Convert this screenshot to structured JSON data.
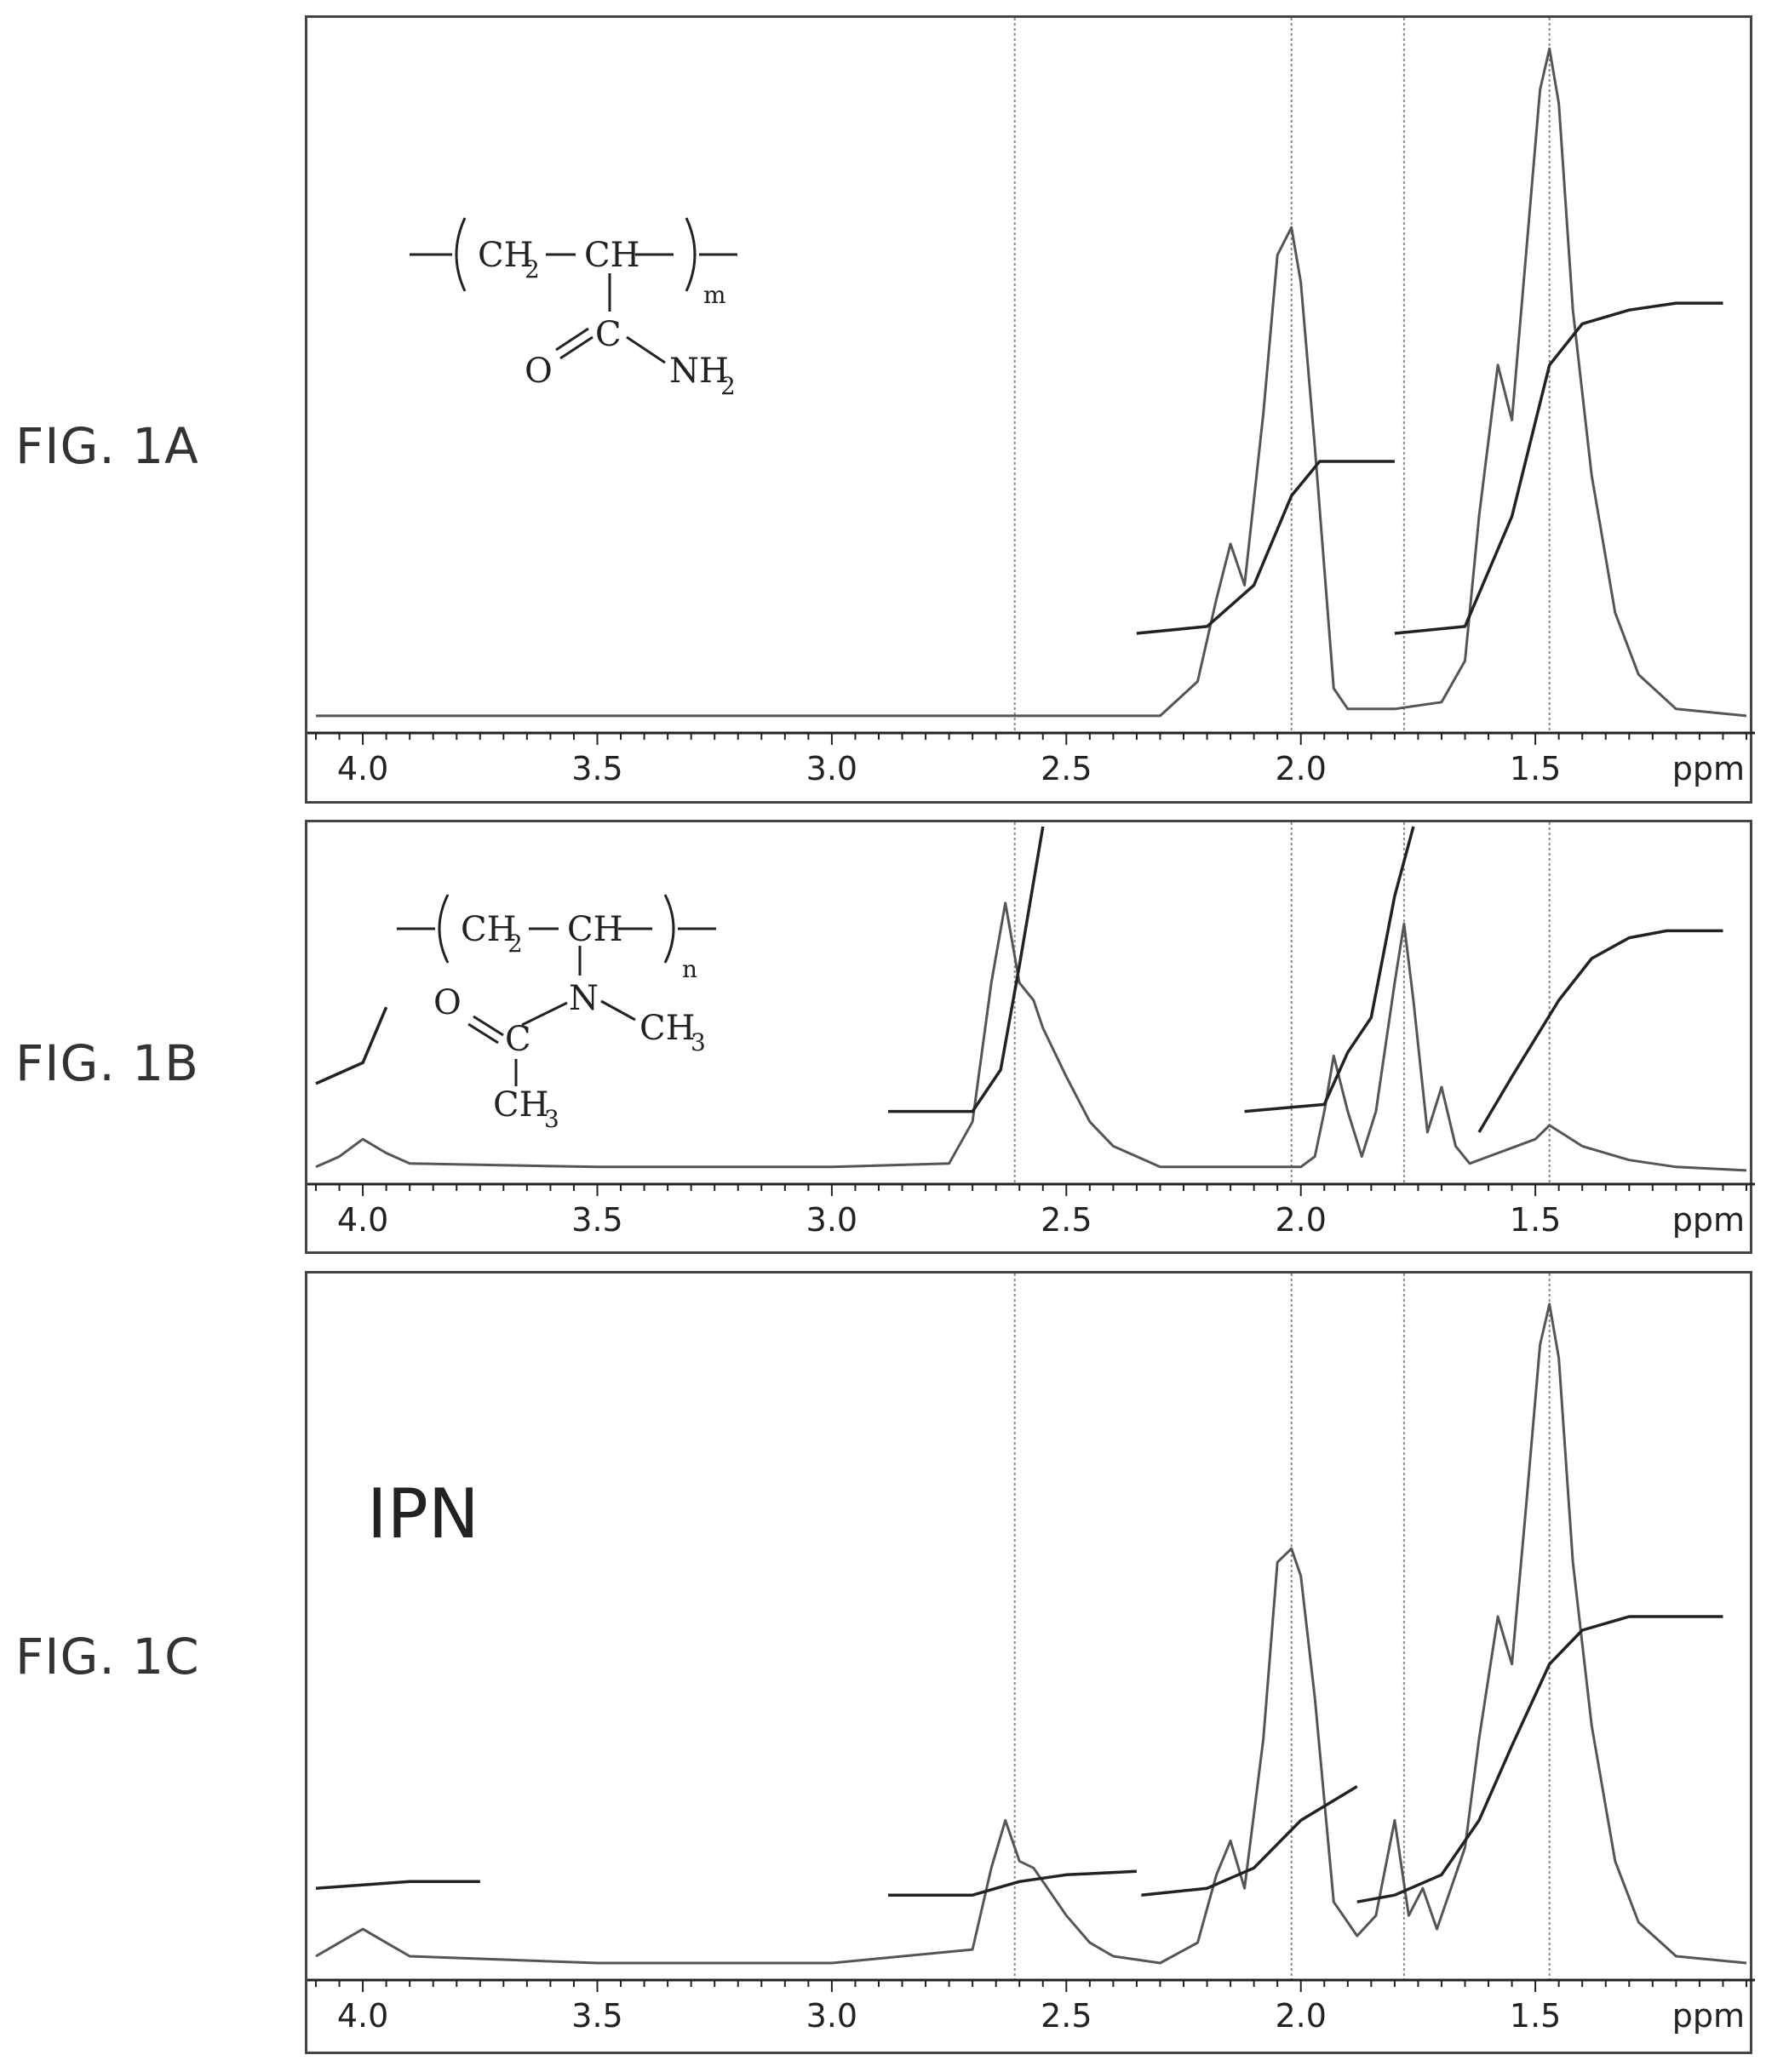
{
  "figures": {
    "a": {
      "label": "FIG. 1A"
    },
    "b": {
      "label": "FIG. 1B"
    },
    "c": {
      "label": "FIG. 1C",
      "panel_text": "IPN"
    }
  },
  "x_axis": {
    "unit": "ppm",
    "ticks": [
      "4.0",
      "3.5",
      "3.0",
      "2.5",
      "2.0",
      "1.5"
    ],
    "tick_values": [
      4.0,
      3.5,
      3.0,
      2.5,
      2.0,
      1.5
    ],
    "xlim": [
      4.1,
      1.05
    ],
    "reversed": true
  },
  "reference_lines_ppm": [
    2.61,
    2.02,
    1.78,
    1.47
  ],
  "structures": {
    "a": {
      "unit1": "CH",
      "unit1_sub": "2",
      "unit2": "CH",
      "repeat": "m",
      "carbonyl_c": "C",
      "oxygen": "O",
      "amide": "NH",
      "amide_sub": "2"
    },
    "b": {
      "unit1": "CH",
      "unit1_sub": "2",
      "unit2": "CH",
      "repeat": "n",
      "nitrogen": "N",
      "oxygen": "O",
      "carbonyl_c": "C",
      "methyl1": "CH",
      "methyl1_sub": "3",
      "methyl2": "CH",
      "methyl2_sub": "3"
    }
  },
  "chart_data": [
    {
      "type": "line",
      "xlabel": "ppm",
      "xlim": [
        4.1,
        1.05
      ],
      "ylim": [
        0,
        1
      ],
      "series": [
        {
          "role": "spectrum",
          "x": [
            4.1,
            2.3,
            2.22,
            2.18,
            2.15,
            2.12,
            2.08,
            2.05,
            2.02,
            2.0,
            1.97,
            1.93,
            1.9,
            1.8,
            1.7,
            1.65,
            1.62,
            1.58,
            1.55,
            1.52,
            1.49,
            1.47,
            1.45,
            1.42,
            1.38,
            1.33,
            1.28,
            1.2,
            1.05
          ],
          "y": [
            0.01,
            0.01,
            0.06,
            0.18,
            0.26,
            0.2,
            0.45,
            0.68,
            0.72,
            0.64,
            0.4,
            0.05,
            0.02,
            0.02,
            0.03,
            0.09,
            0.3,
            0.52,
            0.44,
            0.68,
            0.92,
            0.98,
            0.9,
            0.6,
            0.36,
            0.16,
            0.07,
            0.02,
            0.01
          ]
        },
        {
          "role": "integral",
          "x": [
            2.35,
            2.2,
            2.1,
            2.02,
            1.96,
            1.8
          ],
          "y": [
            0.13,
            0.14,
            0.2,
            0.33,
            0.38,
            0.38
          ]
        },
        {
          "role": "integral",
          "x": [
            1.8,
            1.65,
            1.55,
            1.47,
            1.4,
            1.3,
            1.2,
            1.1
          ],
          "y": [
            0.13,
            0.14,
            0.3,
            0.52,
            0.58,
            0.6,
            0.61,
            0.61
          ]
        }
      ]
    },
    {
      "type": "line",
      "xlabel": "ppm",
      "xlim": [
        4.1,
        1.05
      ],
      "ylim": [
        0,
        1
      ],
      "series": [
        {
          "role": "spectrum",
          "x": [
            4.1,
            4.05,
            4.0,
            3.95,
            3.9,
            3.5,
            3.0,
            2.75,
            2.7,
            2.66,
            2.63,
            2.6,
            2.57,
            2.55,
            2.5,
            2.45,
            2.4,
            2.3,
            2.0,
            1.97,
            1.95,
            1.93,
            1.9,
            1.87,
            1.84,
            1.8,
            1.78,
            1.76,
            1.73,
            1.7,
            1.67,
            1.64,
            1.6,
            1.5,
            1.47,
            1.4,
            1.3,
            1.2,
            1.05
          ],
          "y": [
            0.02,
            0.05,
            0.1,
            0.06,
            0.03,
            0.02,
            0.02,
            0.03,
            0.15,
            0.55,
            0.78,
            0.55,
            0.5,
            0.42,
            0.28,
            0.15,
            0.08,
            0.02,
            0.02,
            0.05,
            0.18,
            0.34,
            0.18,
            0.05,
            0.18,
            0.55,
            0.72,
            0.5,
            0.12,
            0.25,
            0.08,
            0.03,
            0.05,
            0.1,
            0.14,
            0.08,
            0.04,
            0.02,
            0.01
          ]
        },
        {
          "role": "integral",
          "x": [
            4.1,
            4.0,
            3.95
          ],
          "y": [
            0.26,
            0.32,
            0.48
          ]
        },
        {
          "role": "integral",
          "x": [
            2.88,
            2.7,
            2.64,
            2.6,
            2.55
          ],
          "y": [
            0.18,
            0.18,
            0.3,
            0.6,
            1.0
          ]
        },
        {
          "role": "integral",
          "x": [
            2.12,
            1.95,
            1.9,
            1.85,
            1.8,
            1.76
          ],
          "y": [
            0.18,
            0.2,
            0.35,
            0.45,
            0.8,
            1.0
          ]
        },
        {
          "role": "integral",
          "x": [
            1.62,
            1.55,
            1.45,
            1.38,
            1.3,
            1.22,
            1.1
          ],
          "y": [
            0.12,
            0.28,
            0.5,
            0.62,
            0.68,
            0.7,
            0.7
          ]
        }
      ]
    },
    {
      "type": "line",
      "xlabel": "ppm",
      "xlim": [
        4.1,
        1.05
      ],
      "ylim": [
        0,
        1
      ],
      "series": [
        {
          "role": "spectrum",
          "x": [
            4.1,
            4.05,
            4.0,
            3.95,
            3.9,
            3.5,
            3.0,
            2.7,
            2.66,
            2.63,
            2.6,
            2.57,
            2.54,
            2.5,
            2.45,
            2.4,
            2.3,
            2.22,
            2.18,
            2.15,
            2.12,
            2.08,
            2.05,
            2.02,
            2.0,
            1.97,
            1.93,
            1.88,
            1.84,
            1.8,
            1.77,
            1.74,
            1.71,
            1.68,
            1.65,
            1.62,
            1.58,
            1.55,
            1.52,
            1.49,
            1.47,
            1.45,
            1.42,
            1.38,
            1.33,
            1.28,
            1.2,
            1.05
          ],
          "y": [
            0.02,
            0.04,
            0.06,
            0.04,
            0.02,
            0.01,
            0.01,
            0.03,
            0.15,
            0.22,
            0.16,
            0.15,
            0.12,
            0.08,
            0.04,
            0.02,
            0.01,
            0.04,
            0.14,
            0.19,
            0.12,
            0.34,
            0.6,
            0.62,
            0.58,
            0.4,
            0.1,
            0.05,
            0.08,
            0.22,
            0.08,
            0.12,
            0.06,
            0.12,
            0.18,
            0.34,
            0.52,
            0.45,
            0.68,
            0.92,
            0.98,
            0.9,
            0.6,
            0.36,
            0.16,
            0.07,
            0.02,
            0.01
          ]
        },
        {
          "role": "integral",
          "x": [
            4.1,
            3.9,
            3.75
          ],
          "y": [
            0.12,
            0.13,
            0.13
          ]
        },
        {
          "role": "integral",
          "x": [
            2.88,
            2.7,
            2.6,
            2.5,
            2.35
          ],
          "y": [
            0.11,
            0.11,
            0.13,
            0.14,
            0.145
          ]
        },
        {
          "role": "integral",
          "x": [
            2.34,
            2.2,
            2.1,
            2.0,
            1.88
          ],
          "y": [
            0.11,
            0.12,
            0.15,
            0.22,
            0.27
          ]
        },
        {
          "role": "integral",
          "x": [
            1.88,
            1.8,
            1.7,
            1.62,
            1.55,
            1.47,
            1.4,
            1.3,
            1.2,
            1.1
          ],
          "y": [
            0.1,
            0.11,
            0.14,
            0.22,
            0.33,
            0.45,
            0.5,
            0.52,
            0.52,
            0.52
          ]
        }
      ]
    }
  ]
}
